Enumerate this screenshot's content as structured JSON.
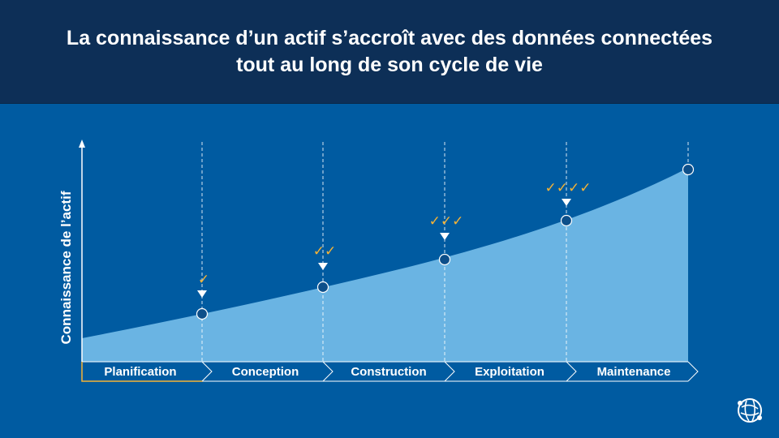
{
  "title": {
    "line1": "La connaissance d’un actif s’accroît avec des données connectées",
    "line2": "tout au long de son cycle de vie"
  },
  "y_axis_label": "Connaissance de l’actif",
  "phases": [
    {
      "label": "Planification"
    },
    {
      "label": "Conception"
    },
    {
      "label": "Construction"
    },
    {
      "label": "Exploitation"
    },
    {
      "label": "Maintenance"
    }
  ],
  "milestones": [
    {
      "checks": "✓"
    },
    {
      "checks": "✓✓"
    },
    {
      "checks": "✓✓✓"
    },
    {
      "checks": "✓✓✓✓"
    },
    {
      "checks": ""
    }
  ],
  "colors": {
    "background": "#005ba1",
    "header": "#0d2f57",
    "area_fill": "#6ab4e3",
    "check": "#f5b335",
    "marker": "#0d4f8a"
  },
  "logo": {
    "icon": "globe-logo-icon"
  }
}
